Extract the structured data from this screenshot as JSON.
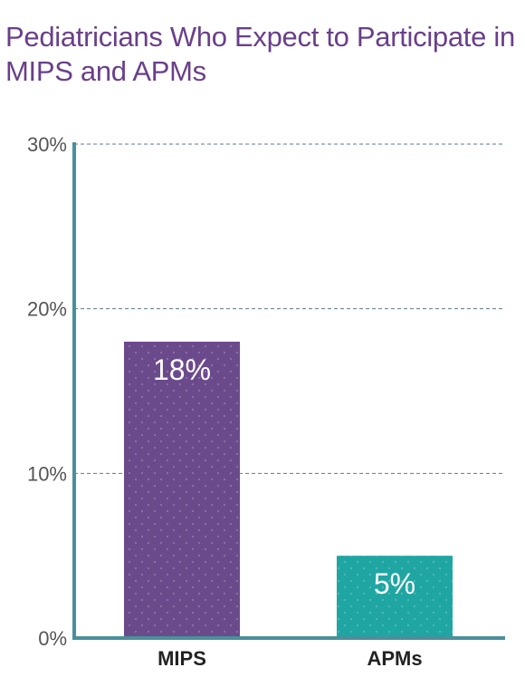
{
  "chart_data": {
    "type": "bar",
    "title": "Pediatricians Who Expect to Participate in MIPS and APMs",
    "categories": [
      "MIPS",
      "APMs"
    ],
    "values": [
      18,
      5
    ],
    "data_labels": [
      "18%",
      "5%"
    ],
    "yticks": [
      "0%",
      "10%",
      "20%",
      "30%"
    ],
    "ylim": [
      0,
      30
    ],
    "grid": true,
    "colors": {
      "MIPS": "#6b4a8c",
      "APMs": "#1fa6a3",
      "axis": "#4a8f9c",
      "title": "#6a3f8a"
    }
  }
}
